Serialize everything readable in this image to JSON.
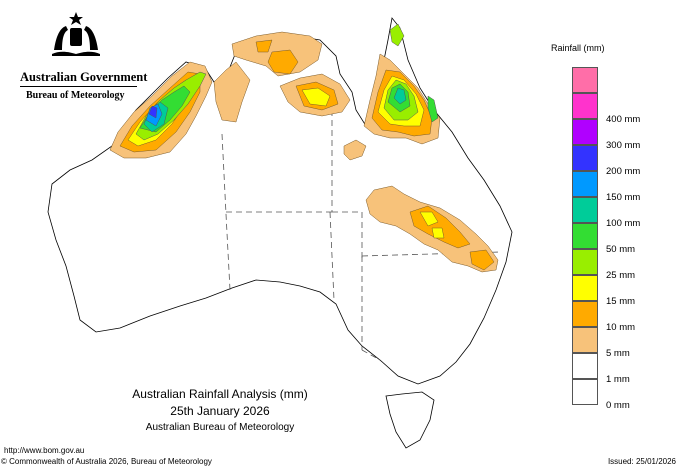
{
  "agency": {
    "government": "Australian Government",
    "bureau": "Bureau of Meteorology"
  },
  "legend": {
    "title": "Rainfall (mm)",
    "bins": [
      {
        "label": "",
        "color": "#ff6ea8"
      },
      {
        "label": "400 mm",
        "color": "#ff33cc"
      },
      {
        "label": "300 mm",
        "color": "#b000ff"
      },
      {
        "label": "200 mm",
        "color": "#3333ff"
      },
      {
        "label": "150 mm",
        "color": "#0099ff"
      },
      {
        "label": "100 mm",
        "color": "#00cc99"
      },
      {
        "label": "50 mm",
        "color": "#33dd33"
      },
      {
        "label": "25 mm",
        "color": "#99ee00"
      },
      {
        "label": "15 mm",
        "color": "#ffff00"
      },
      {
        "label": "10 mm",
        "color": "#ffaa00"
      },
      {
        "label": "5 mm",
        "color": "#f7c27a"
      },
      {
        "label": "1 mm",
        "color": "#ffffff"
      },
      {
        "label": "0 mm",
        "color": "#ffffff"
      }
    ]
  },
  "title": {
    "line1": "Australian Rainfall Analysis (mm)",
    "line2": "25th January 2026",
    "line3": "Australian Bureau of Meteorology"
  },
  "footer": {
    "url": "http://www.bom.gov.au",
    "copyright": "© Commonwealth of Australia 2026, Bureau of Meteorology",
    "issued": "Issued: 25/01/2026"
  }
}
